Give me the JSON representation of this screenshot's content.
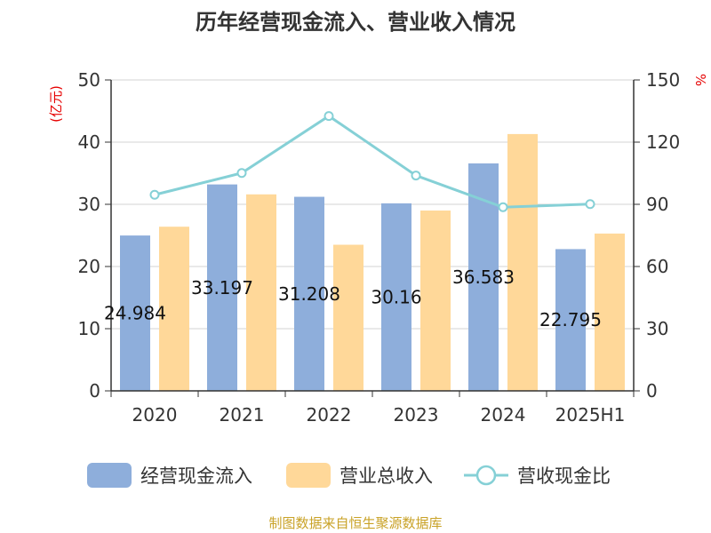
{
  "chart_data": {
    "type": "bar",
    "title": "历年经营现金流入、营业收入情况",
    "categories": [
      "2020",
      "2021",
      "2022",
      "2023",
      "2024",
      "2025H1"
    ],
    "y_left": {
      "unit": "(亿元)",
      "ylim": [
        0,
        50
      ],
      "ticks": [
        0,
        10,
        20,
        30,
        40,
        50
      ]
    },
    "y_right": {
      "unit": "%",
      "ylim": [
        0,
        150
      ],
      "ticks": [
        0,
        30,
        60,
        90,
        120,
        150
      ]
    },
    "series": [
      {
        "name": "经营现金流入",
        "type": "bar",
        "axis": "left",
        "color": "#8eaedb",
        "values": [
          24.984,
          33.197,
          31.208,
          30.16,
          36.583,
          22.795
        ],
        "labels": [
          "24.984",
          "33.197",
          "31.208",
          "30.16",
          "36.583",
          "22.795"
        ]
      },
      {
        "name": "营业总收入",
        "type": "bar",
        "axis": "left",
        "color": "#ffd899",
        "values": [
          26.4,
          31.6,
          23.5,
          29.0,
          41.3,
          25.3
        ]
      },
      {
        "name": "营收现金比",
        "type": "line",
        "axis": "right",
        "color": "#85d0d6",
        "values": [
          94.6,
          105.1,
          132.6,
          103.9,
          88.6,
          90.1
        ]
      }
    ],
    "grid": true,
    "legend_position": "bottom"
  },
  "source_note": "制图数据来自恒生聚源数据库"
}
